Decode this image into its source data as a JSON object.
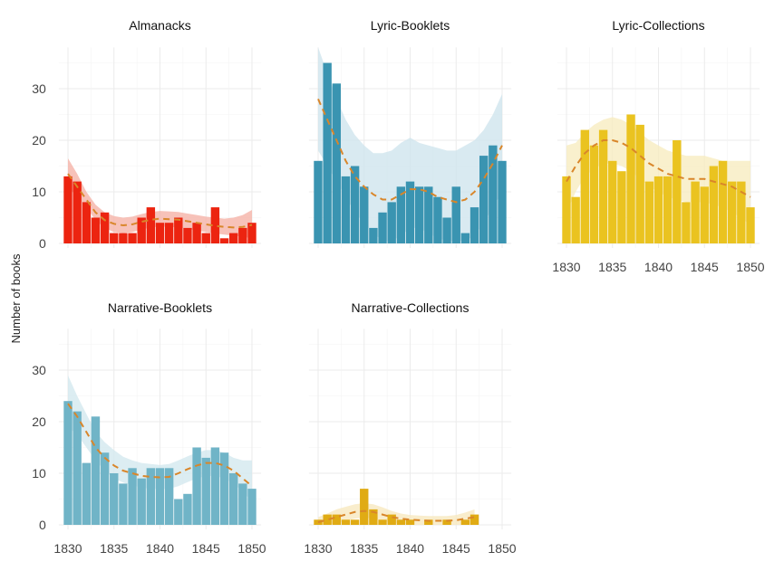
{
  "chart_data": {
    "type": "bar",
    "ylabel": "Number of books",
    "xlabel": "",
    "x_ticks": [
      "1830",
      "1835",
      "1840",
      "1845",
      "1850"
    ],
    "y_ticks": [
      "0",
      "10",
      "20",
      "30"
    ],
    "xlim": [
      1829,
      1851
    ],
    "ylim": [
      0,
      38
    ],
    "grid": true,
    "trend_style": "dashed smoothed line with confidence band",
    "trend_color": "#d9862a",
    "years": [
      1830,
      1831,
      1832,
      1833,
      1834,
      1835,
      1836,
      1837,
      1838,
      1839,
      1840,
      1841,
      1842,
      1843,
      1844,
      1845,
      1846,
      1847,
      1848,
      1849,
      1850
    ],
    "panels": [
      {
        "title": "Almanacks",
        "color": "#ec2410",
        "band_color": "#f5b3a8",
        "values": [
          13,
          12,
          8,
          5,
          6,
          2,
          2,
          2,
          5,
          7,
          4,
          4,
          5,
          3,
          4,
          2,
          7,
          1,
          2,
          3,
          4
        ],
        "trend": [
          13.5,
          11,
          8.5,
          6,
          4.5,
          3.8,
          3.5,
          3.7,
          4.2,
          4.6,
          4.8,
          4.7,
          4.6,
          4.3,
          4,
          3.7,
          3.4,
          3.2,
          3.1,
          3.2,
          3.6
        ],
        "band_lower": [
          11,
          9,
          7,
          4.5,
          3,
          2.2,
          2,
          2.2,
          2.7,
          3.1,
          3.3,
          3.2,
          3.1,
          2.8,
          2.5,
          2.2,
          1.9,
          1.7,
          1.5,
          1.3,
          1
        ],
        "band_upper": [
          16.5,
          13.5,
          10,
          7.5,
          6,
          5.3,
          5,
          5.2,
          5.7,
          6.1,
          6.3,
          6.2,
          6.1,
          5.8,
          5.5,
          5.2,
          5,
          4.8,
          5,
          5.5,
          6.5
        ]
      },
      {
        "title": "Lyric-Booklets",
        "color": "#3a94b1",
        "band_color": "#cfe5ee",
        "values": [
          16,
          35,
          31,
          13,
          15,
          11,
          3,
          6,
          8,
          11,
          12,
          11,
          11,
          9,
          5,
          11,
          2,
          7,
          17,
          19,
          16
        ],
        "trend": [
          28,
          24,
          20,
          16,
          13,
          11,
          9.5,
          8.5,
          8.5,
          9.5,
          10.5,
          10.5,
          10,
          9,
          8.5,
          8,
          8.5,
          10,
          12.5,
          15.5,
          19
        ],
        "band_lower": [
          18,
          15,
          12,
          9,
          6,
          4,
          2,
          0.5,
          0.5,
          1.5,
          3,
          3,
          2,
          1,
          0.5,
          0.5,
          0.5,
          1.5,
          4,
          7,
          10
        ],
        "band_upper": [
          38,
          33,
          28,
          24,
          21,
          19,
          17.5,
          17.5,
          18,
          19.5,
          20.5,
          19.5,
          19,
          18.5,
          18,
          18,
          19,
          20,
          22,
          25,
          29
        ]
      },
      {
        "title": "Lyric-Collections",
        "color": "#eac320",
        "band_color": "#f8ecc0",
        "values": [
          13,
          9,
          22,
          19,
          22,
          16,
          14,
          25,
          23,
          12,
          13,
          13,
          20,
          8,
          12,
          11,
          15,
          16,
          12,
          12,
          7
        ],
        "trend": [
          12,
          15,
          17.5,
          19,
          20,
          20,
          19.5,
          18.5,
          17,
          15.5,
          14.5,
          13.5,
          13,
          12.5,
          12.5,
          12.5,
          12,
          11.5,
          11,
          10,
          9
        ],
        "band_lower": [
          6,
          10,
          13,
          14.5,
          15.5,
          15.5,
          15,
          14,
          12.5,
          11,
          10,
          9,
          8.5,
          8,
          8,
          8,
          7.5,
          7,
          6,
          5,
          3.5
        ],
        "band_upper": [
          19,
          19.5,
          21.5,
          23,
          24,
          24.5,
          24,
          23,
          21.5,
          20,
          19,
          18,
          17.5,
          17,
          17,
          17,
          16.5,
          16,
          16,
          16,
          16
        ]
      },
      {
        "title": "Narrative-Booklets",
        "color": "#70b4c7",
        "band_color": "#d3e8ef",
        "values": [
          24,
          22,
          12,
          21,
          14,
          10,
          8,
          11,
          9,
          11,
          11,
          11,
          5,
          6,
          15,
          13,
          15,
          14,
          10,
          8,
          7
        ],
        "trend": [
          23.5,
          21,
          18,
          15,
          13,
          11.5,
          10.5,
          10,
          9.5,
          9.3,
          9.2,
          9.3,
          10,
          10.8,
          11.5,
          12,
          12,
          11.5,
          10.5,
          9,
          7.5
        ],
        "band_lower": [
          19,
          17.5,
          15,
          12.5,
          10.5,
          9,
          8.2,
          7.7,
          7.2,
          7,
          6.9,
          7,
          7.5,
          8.3,
          9,
          9.5,
          9.5,
          9,
          8,
          6.5,
          4.5
        ],
        "band_upper": [
          29,
          25,
          21.5,
          18,
          16,
          14.5,
          13.2,
          12.5,
          12,
          11.8,
          11.6,
          11.8,
          12.5,
          13.3,
          14,
          14.5,
          14.5,
          14,
          13,
          12.5,
          12.5
        ]
      },
      {
        "title": "Narrative-Collections",
        "color": "#e0ab14",
        "band_color": "#f8e8bf",
        "values": [
          1,
          2,
          2,
          1,
          1,
          7,
          3,
          1,
          2,
          1,
          1,
          0,
          1,
          0,
          1,
          0,
          1,
          2,
          null,
          null,
          null
        ],
        "trend": [
          0.5,
          1,
          1.5,
          2,
          2.5,
          2.7,
          2.5,
          2,
          1.5,
          1.2,
          1,
          0.9,
          0.8,
          0.8,
          0.8,
          0.9,
          1.2,
          1.5,
          null,
          null,
          null
        ],
        "band_lower": [
          0,
          0,
          0.3,
          0.8,
          1.2,
          1.4,
          1.2,
          0.8,
          0.4,
          0.2,
          0.1,
          0,
          0,
          0,
          0,
          0,
          0,
          0,
          null,
          null,
          null
        ],
        "band_upper": [
          1.5,
          2.2,
          3,
          3.5,
          4,
          4.2,
          4,
          3.4,
          2.7,
          2.2,
          1.9,
          1.8,
          1.7,
          1.7,
          1.7,
          1.9,
          2.4,
          3,
          null,
          null,
          null
        ]
      }
    ]
  }
}
